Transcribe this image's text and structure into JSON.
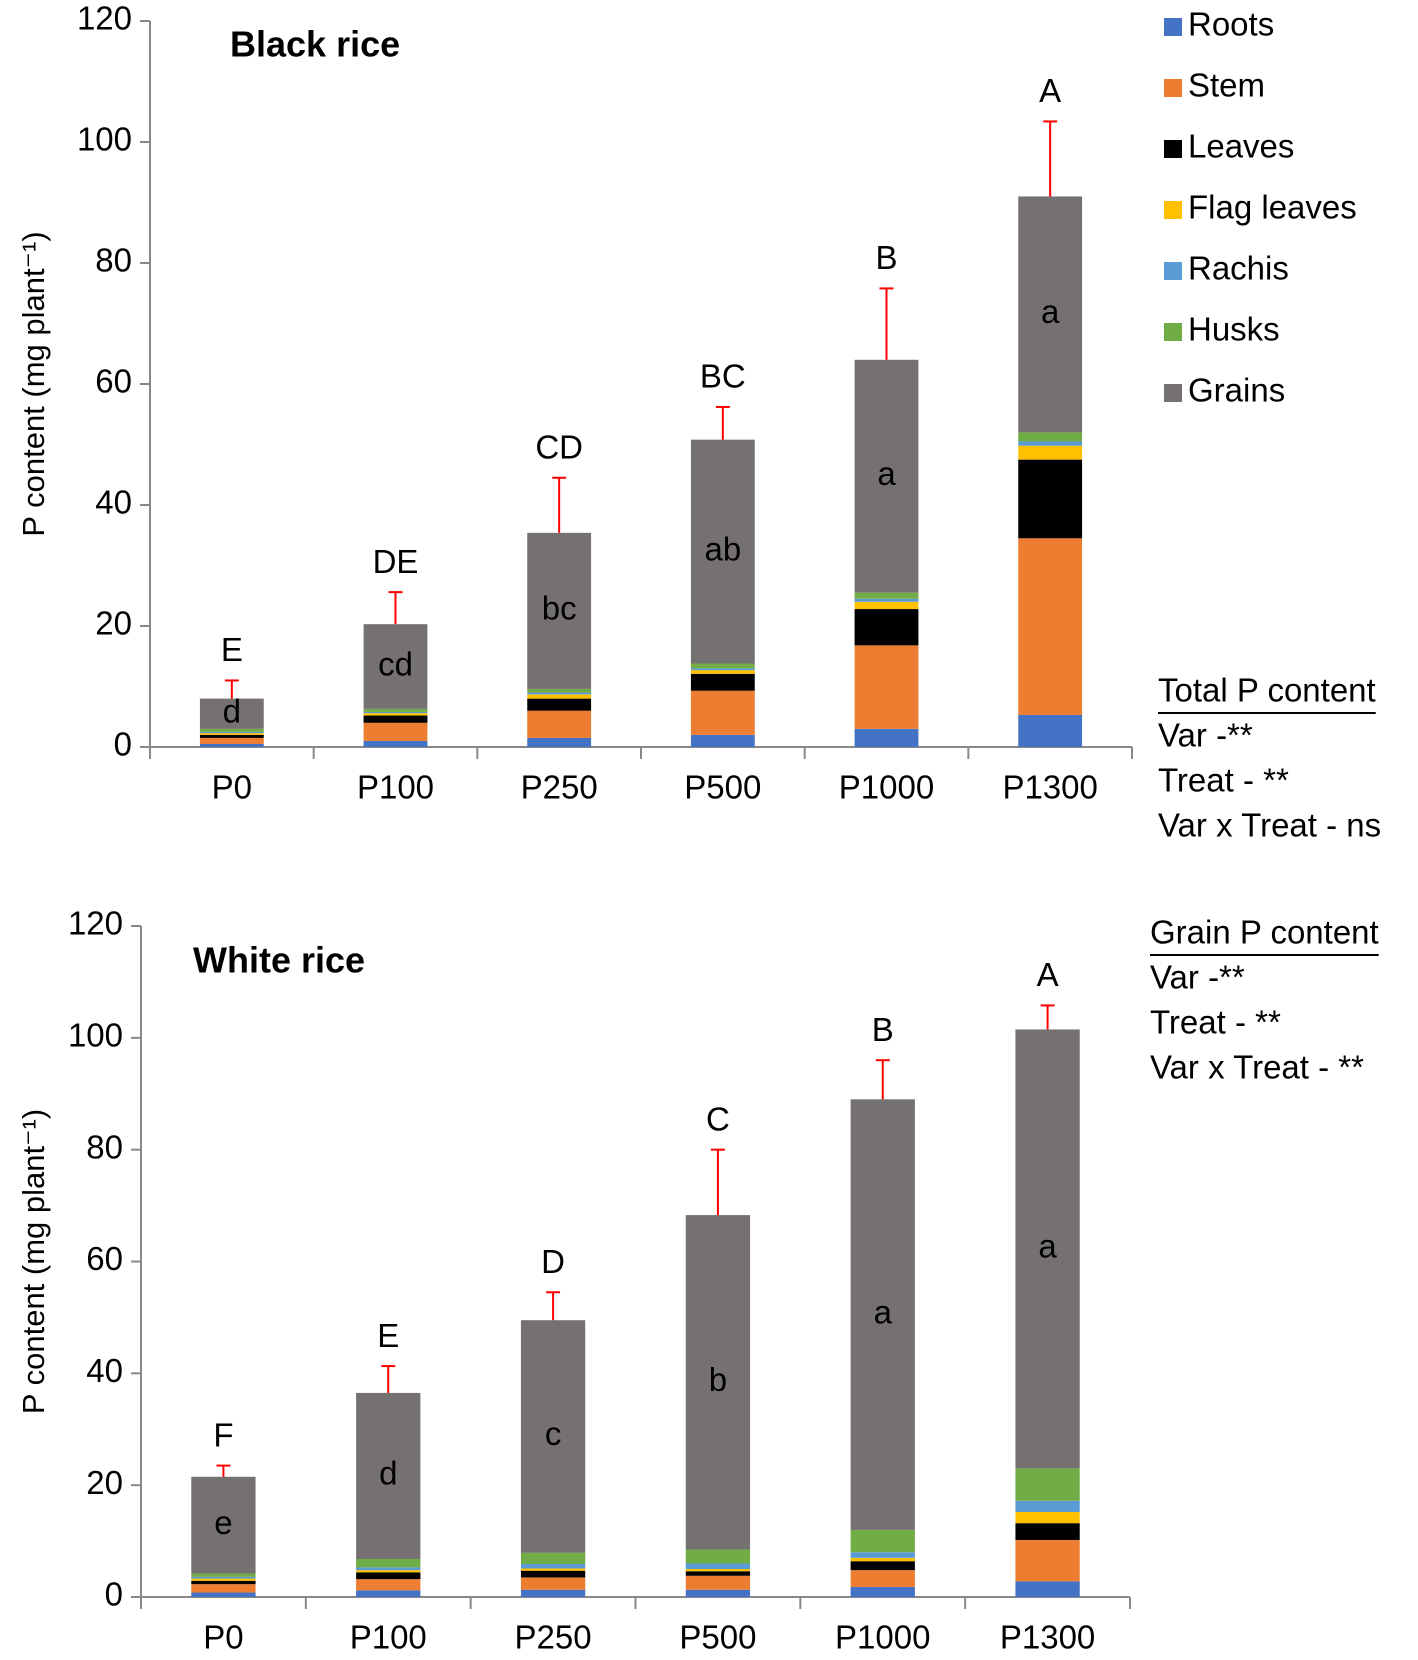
{
  "chart_data": [
    {
      "type": "stacked_bar",
      "title": "Black rice",
      "y_label": "P content (mg plant⁻¹)",
      "categories": [
        "P0",
        "P100",
        "P250",
        "P500",
        "P1000",
        "P1300"
      ],
      "ylim": [
        0,
        120
      ],
      "yticks": [
        0,
        20,
        40,
        60,
        80,
        100,
        120
      ],
      "series": [
        {
          "name": "Roots",
          "color": "#4472c4",
          "values": [
            0.5,
            1.0,
            1.5,
            2.0,
            3.0,
            5.3
          ]
        },
        {
          "name": "Stem",
          "color": "#ed7d31",
          "values": [
            1.0,
            3.0,
            4.5,
            7.3,
            13.8,
            29.2
          ]
        },
        {
          "name": "Leaves",
          "color": "#000000",
          "values": [
            0.5,
            1.2,
            2.0,
            2.8,
            6.0,
            13.0
          ]
        },
        {
          "name": "Flag leaves",
          "color": "#ffc000",
          "values": [
            0.3,
            0.4,
            0.7,
            0.6,
            1.2,
            2.3
          ]
        },
        {
          "name": "Rachis",
          "color": "#5b9bd5",
          "values": [
            0.2,
            0.2,
            0.3,
            0.3,
            0.5,
            0.7
          ]
        },
        {
          "name": "Husks",
          "color": "#70ad47",
          "values": [
            0.5,
            0.5,
            0.6,
            0.8,
            1.0,
            1.5
          ]
        },
        {
          "name": "Grains",
          "color": "#767171",
          "values": [
            5.0,
            14.0,
            25.8,
            37.0,
            38.5,
            39.0
          ],
          "errors": [
            3.0,
            5.3,
            9.1,
            5.4,
            11.8,
            12.4
          ]
        }
      ],
      "group_labels": [
        "E",
        "DE",
        "CD",
        "BC",
        "B",
        "A"
      ],
      "grain_labels": [
        "d",
        "cd",
        "bc",
        "ab",
        "a",
        "a"
      ],
      "stats": {
        "title": "Total P content",
        "lines": [
          "Var -**",
          "Treat - **",
          "Var x Treat - ns"
        ]
      }
    },
    {
      "type": "stacked_bar",
      "title": "White rice",
      "y_label": "P content (mg plant⁻¹)",
      "categories": [
        "P0",
        "P100",
        "P250",
        "P500",
        "P1000",
        "P1300"
      ],
      "ylim": [
        0,
        120
      ],
      "yticks": [
        0,
        20,
        40,
        60,
        80,
        100,
        120
      ],
      "series": [
        {
          "name": "Roots",
          "color": "#4472c4",
          "values": [
            0.8,
            1.2,
            1.3,
            1.3,
            1.8,
            2.8
          ]
        },
        {
          "name": "Stem",
          "color": "#ed7d31",
          "values": [
            1.5,
            2.0,
            2.2,
            2.5,
            3.0,
            7.4
          ]
        },
        {
          "name": "Leaves",
          "color": "#000000",
          "values": [
            0.6,
            1.2,
            1.2,
            0.8,
            1.6,
            3.0
          ]
        },
        {
          "name": "Flag leaves",
          "color": "#ffc000",
          "values": [
            0.4,
            0.4,
            0.4,
            0.4,
            0.6,
            2.0
          ]
        },
        {
          "name": "Rachis",
          "color": "#5b9bd5",
          "values": [
            0.3,
            0.5,
            0.8,
            1.0,
            1.0,
            2.0
          ]
        },
        {
          "name": "Husks",
          "color": "#70ad47",
          "values": [
            0.6,
            1.5,
            2.0,
            2.5,
            4.0,
            5.8
          ]
        },
        {
          "name": "Grains",
          "color": "#767171",
          "values": [
            17.3,
            29.7,
            41.6,
            59.8,
            77.0,
            78.5
          ],
          "errors": [
            2.0,
            4.8,
            5.0,
            11.7,
            7.0,
            4.3
          ]
        }
      ],
      "group_labels": [
        "F",
        "E",
        "D",
        "C",
        "B",
        "A"
      ],
      "grain_labels": [
        "e",
        "d",
        "c",
        "b",
        "a",
        "a"
      ],
      "stats": {
        "title": "Grain P content",
        "lines": [
          "Var -**",
          "Treat - **",
          "Var x Treat - **"
        ]
      }
    }
  ]
}
